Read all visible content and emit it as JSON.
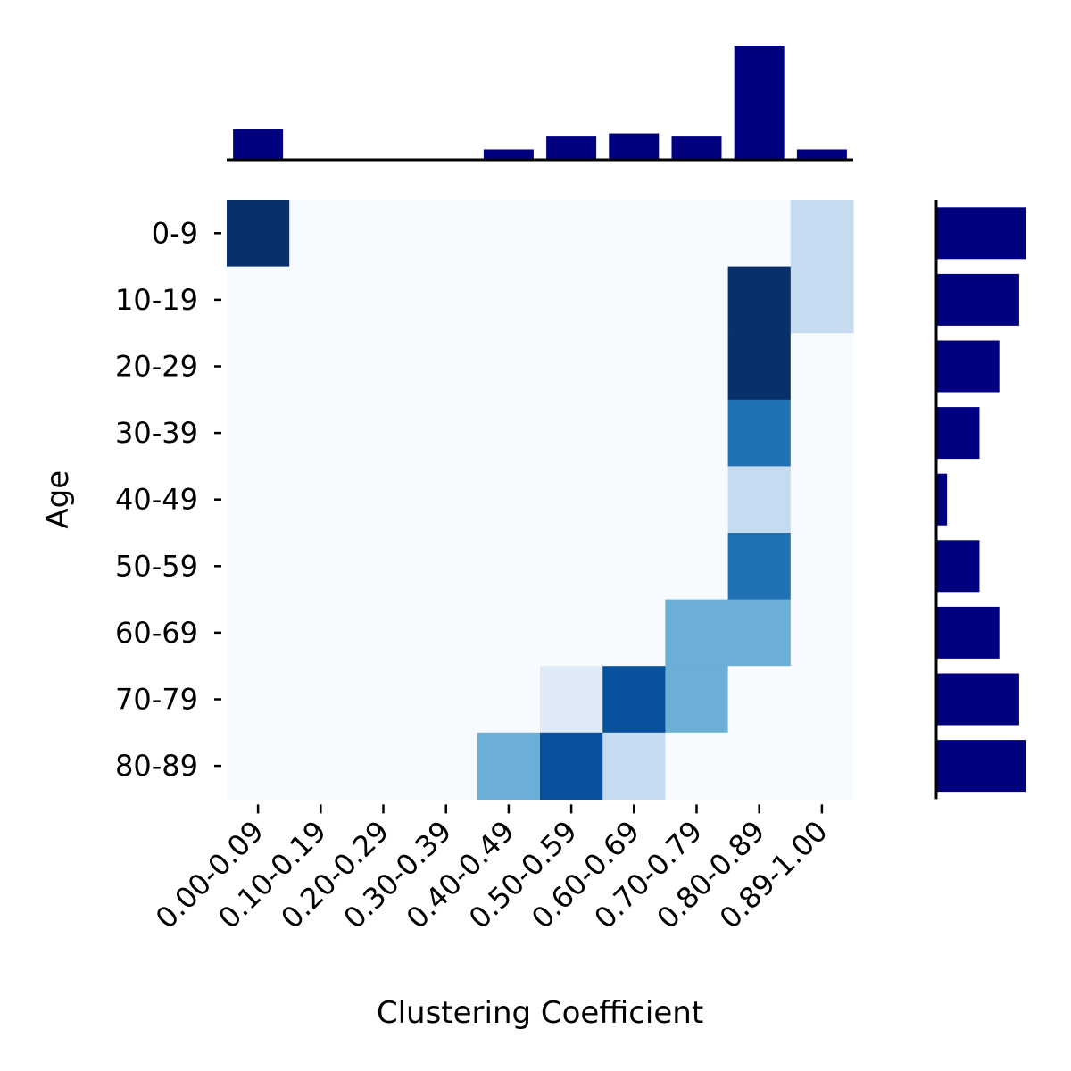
{
  "chart_data": {
    "type": "heatmap",
    "xlabel": "Clustering Coefficient",
    "ylabel": "Age",
    "x_categories": [
      "0.00-0.09",
      "0.10-0.19",
      "0.20-0.29",
      "0.30-0.39",
      "0.40-0.49",
      "0.50-0.59",
      "0.60-0.69",
      "0.70-0.79",
      "0.80-0.89",
      "0.89-1.00"
    ],
    "y_categories": [
      "0-9",
      "10-19",
      "20-29",
      "30-39",
      "40-49",
      "50-59",
      "60-69",
      "70-79",
      "80-89"
    ],
    "values": [
      [
        1.0,
        0,
        0,
        0,
        0,
        0,
        0,
        0,
        0,
        0.2
      ],
      [
        0,
        0,
        0,
        0,
        0,
        0,
        0,
        0,
        1.0,
        0.2
      ],
      [
        0,
        0,
        0,
        0,
        0,
        0,
        0,
        0,
        1.0,
        0
      ],
      [
        0,
        0,
        0,
        0,
        0,
        0,
        0,
        0,
        0.75,
        0
      ],
      [
        0,
        0,
        0,
        0,
        0,
        0,
        0,
        0,
        0.2,
        0
      ],
      [
        0,
        0,
        0,
        0,
        0,
        0,
        0,
        0,
        0.75,
        0
      ],
      [
        0,
        0,
        0,
        0,
        0,
        0,
        0,
        0.55,
        0.55,
        0
      ],
      [
        0,
        0,
        0,
        0,
        0,
        0.1,
        0.85,
        0.45,
        0,
        0
      ],
      [
        0,
        0,
        0,
        0,
        0.45,
        0.85,
        0.2,
        0,
        0,
        0
      ]
    ],
    "top_marginal": [
      0.27,
      0,
      0,
      0,
      0.09,
      0.21,
      0.23,
      0.21,
      1.0,
      0.09
    ],
    "right_marginal": [
      1.0,
      0.92,
      0.7,
      0.48,
      0.12,
      0.48,
      0.7,
      0.92,
      1.0
    ],
    "colormap": [
      "#f7fbff",
      "#deebf7",
      "#c6dbef",
      "#9ecae1",
      "#6baed6",
      "#4292c6",
      "#2171b5",
      "#08519c",
      "#08306b"
    ],
    "marginal_color": "#000080",
    "grid": false
  }
}
